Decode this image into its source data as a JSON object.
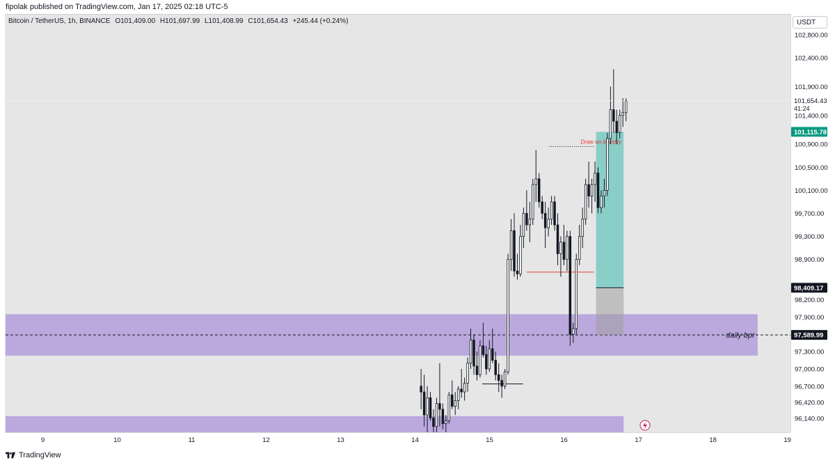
{
  "publisher": "fipolak published on TradingView.com, Jan 17, 2025 02:18 UTC-5",
  "footer_brand": "TradingView",
  "legend": {
    "symbol": "Bitcoin / TetherUS, 1h, BINANCE",
    "open": "O101,409.00",
    "high": "H101,697.99",
    "low": "L101,408.99",
    "close": "C101,654.43",
    "change": "+245.44 (+0.24%)"
  },
  "quote_currency": "USDT",
  "colors": {
    "chart_bg": "#e6e6e6",
    "zone_fill": "#b39ddb",
    "long_profit": "#80cbc4",
    "long_loss": "#9e9e9e",
    "liquidity_line": "#e53935",
    "badge_green": "#089981",
    "badge_dark": "#131722"
  },
  "chart_data": {
    "type": "candlestick",
    "symbol": "Bitcoin / TetherUS",
    "interval": "1h",
    "exchange": "BINANCE",
    "ylim": [
      95900,
      103150
    ],
    "y_ticks": [
      {
        "value": 96140,
        "label": "96,140.00"
      },
      {
        "value": 96420,
        "label": "96,420.00"
      },
      {
        "value": 96700,
        "label": "96,700.00"
      },
      {
        "value": 97000,
        "label": "97,000.00"
      },
      {
        "value": 97300,
        "label": "97,300.00"
      },
      {
        "value": 97900,
        "label": "97,900.00"
      },
      {
        "value": 98200,
        "label": "98,200.00"
      },
      {
        "value": 98900,
        "label": "98,900.00"
      },
      {
        "value": 99300,
        "label": "99,300.00"
      },
      {
        "value": 99700,
        "label": "99,700.00"
      },
      {
        "value": 100100,
        "label": "100,100.00"
      },
      {
        "value": 100500,
        "label": "100,500.00"
      },
      {
        "value": 100900,
        "label": "100,900.00"
      },
      {
        "value": 101400,
        "label": "101,400.00"
      },
      {
        "value": 101900,
        "label": "101,900.00"
      },
      {
        "value": 102400,
        "label": "102,400.00"
      },
      {
        "value": 102800,
        "label": "102,800.00"
      }
    ],
    "x_ticks": [
      {
        "day": 9,
        "label": "9"
      },
      {
        "day": 10,
        "label": "10"
      },
      {
        "day": 11,
        "label": "11"
      },
      {
        "day": 12,
        "label": "12"
      },
      {
        "day": 13,
        "label": "13"
      },
      {
        "day": 14,
        "label": "14"
      },
      {
        "day": 15,
        "label": "15"
      },
      {
        "day": 16,
        "label": "16"
      },
      {
        "day": 17,
        "label": "17"
      },
      {
        "day": 18,
        "label": "18"
      },
      {
        "day": 19,
        "label": "19"
      }
    ],
    "x_range": [
      8.5,
      19.05
    ],
    "price_badges": [
      {
        "value": 101654.43,
        "label": "101,654.43",
        "sub": "41:24",
        "style": "current"
      },
      {
        "value": 101115.78,
        "label": "101,115.78",
        "style": "green"
      },
      {
        "value": 98409.17,
        "label": "98,409.17",
        "style": "dark"
      },
      {
        "value": 97589.99,
        "label": "97,589.99",
        "style": "dark"
      }
    ],
    "zones": [
      {
        "label": "daily bpr",
        "from_day": 8.5,
        "to_day": 18.6,
        "low": 97230,
        "high": 97950,
        "midline": 97589.99
      },
      {
        "label": "",
        "from_day": 8.5,
        "to_day": 16.8,
        "low": 95900,
        "high": 96180
      }
    ],
    "long_position": {
      "from_day": 16.43,
      "to_day": 16.8,
      "entry": 98409.17,
      "target": 101115.78,
      "stop": 97589.99
    },
    "annotations": [
      {
        "text": "Draw on liquidity",
        "day": 16.16,
        "price": 100860
      }
    ],
    "horizontal_rays": [
      {
        "from_day": 15.5,
        "to_day": 16.4,
        "price": 98680,
        "color": "red"
      },
      {
        "from_day": 15.8,
        "to_day": 16.4,
        "price": 100860,
        "color": "dotted"
      },
      {
        "from_day": 14.9,
        "to_day": 15.45,
        "price": 96740,
        "color": "black"
      }
    ],
    "candles_start_day": 14.08,
    "candles_step_day": 0.0417,
    "candles": [
      [
        96700,
        97000,
        96300,
        96600
      ],
      [
        96600,
        96900,
        96000,
        96200
      ],
      [
        96200,
        96700,
        95900,
        96500
      ],
      [
        96500,
        96600,
        96100,
        96150
      ],
      [
        96150,
        96300,
        95900,
        96000
      ],
      [
        96000,
        96500,
        95900,
        96400
      ],
      [
        96400,
        97100,
        96000,
        96300
      ],
      [
        96300,
        96400,
        95950,
        96050
      ],
      [
        96050,
        96200,
        95900,
        96100
      ],
      [
        96100,
        96600,
        96050,
        96550
      ],
      [
        96550,
        96800,
        96300,
        96350
      ],
      [
        96350,
        96600,
        96200,
        96450
      ],
      [
        96450,
        96700,
        96300,
        96650
      ],
      [
        96650,
        97000,
        96500,
        96600
      ],
      [
        96600,
        96850,
        96450,
        96750
      ],
      [
        96750,
        97200,
        96600,
        97100
      ],
      [
        97100,
        97700,
        97000,
        97500
      ],
      [
        97500,
        97600,
        96900,
        97050
      ],
      [
        97050,
        97300,
        96800,
        96900
      ],
      [
        96900,
        97500,
        96850,
        97400
      ],
      [
        97400,
        97800,
        97200,
        97250
      ],
      [
        97250,
        97400,
        96900,
        97000
      ],
      [
        97000,
        97500,
        96950,
        97350
      ],
      [
        97350,
        97700,
        97100,
        97150
      ],
      [
        97150,
        97300,
        96800,
        96900
      ],
      [
        96900,
        97100,
        96600,
        96800
      ],
      [
        96800,
        96900,
        96500,
        96700
      ],
      [
        96700,
        97000,
        96650,
        96950
      ],
      [
        96950,
        99000,
        96900,
        98900
      ],
      [
        98900,
        99600,
        98700,
        99400
      ],
      [
        99400,
        99700,
        98600,
        98700
      ],
      [
        98700,
        99000,
        98550,
        98650
      ],
      [
        98650,
        99500,
        98600,
        99300
      ],
      [
        99300,
        99800,
        99100,
        99700
      ],
      [
        99700,
        100100,
        99400,
        99500
      ],
      [
        99500,
        99900,
        99200,
        99600
      ],
      [
        99600,
        100300,
        99500,
        100200
      ],
      [
        100200,
        100800,
        99900,
        100300
      ],
      [
        100300,
        100400,
        99800,
        99900
      ],
      [
        99900,
        100000,
        99600,
        99700
      ],
      [
        99700,
        99900,
        99100,
        99450
      ],
      [
        99450,
        99800,
        99300,
        99600
      ],
      [
        99600,
        100000,
        99500,
        99900
      ],
      [
        99900,
        100000,
        99400,
        99500
      ],
      [
        99500,
        99700,
        98800,
        99000
      ],
      [
        99000,
        99300,
        98600,
        99200
      ],
      [
        99200,
        99500,
        98800,
        98900
      ],
      [
        98900,
        99400,
        98700,
        99300
      ],
      [
        99300,
        99400,
        97400,
        97600
      ],
      [
        97600,
        97800,
        97450,
        97700
      ],
      [
        97700,
        99000,
        97600,
        98900
      ],
      [
        98900,
        99500,
        98800,
        99300
      ],
      [
        99300,
        99800,
        99100,
        99600
      ],
      [
        99600,
        100300,
        99500,
        100200
      ],
      [
        100200,
        100600,
        99800,
        100000
      ],
      [
        100000,
        100300,
        99700,
        100200
      ],
      [
        100200,
        100600,
        99900,
        100400
      ],
      [
        100400,
        100500,
        99700,
        99800
      ],
      [
        99800,
        100100,
        99700,
        100000
      ],
      [
        100000,
        100300,
        99800,
        100100
      ],
      [
        100100,
        101100,
        100000,
        101000
      ],
      [
        101000,
        101900,
        100900,
        101500
      ],
      [
        101500,
        102200,
        101100,
        101300
      ],
      [
        101300,
        101500,
        100900,
        101100
      ],
      [
        101100,
        101500,
        101000,
        101400
      ],
      [
        101400,
        101700,
        101200,
        101450
      ],
      [
        101450,
        101697,
        101300,
        101654
      ]
    ]
  }
}
